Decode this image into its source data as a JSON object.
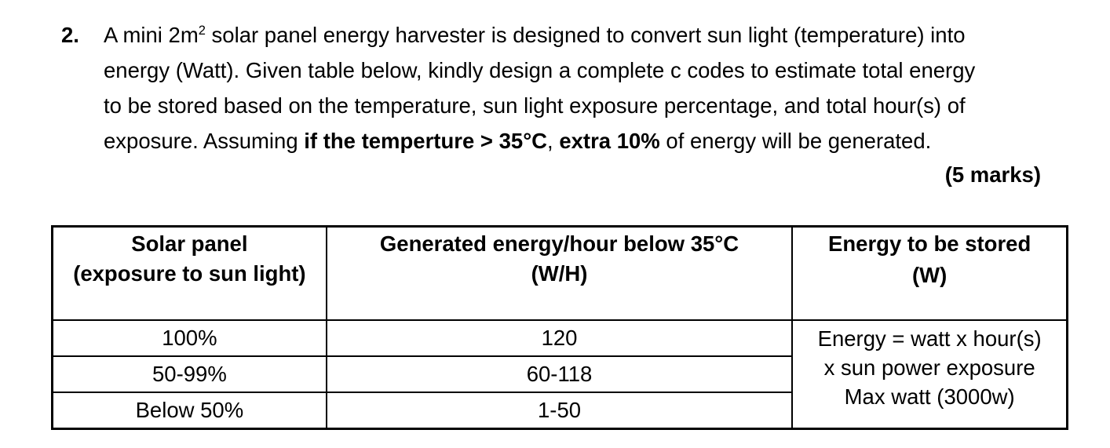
{
  "question": {
    "number": "2.",
    "lines": [
      {
        "pre": "A mini 2m",
        "sup": "2",
        "post": " solar panel energy harvester is designed to convert sun light (temperature) into"
      },
      {
        "text": "energy (Watt). Given table below, kindly design a complete c codes to estimate total energy"
      },
      {
        "text": "to be stored based on the temperature, sun light exposure percentage, and total hour(s) of"
      },
      {
        "pre": "exposure. Assuming ",
        "bold1": "if the temperture > 35°C",
        "mid": ", ",
        "bold2": "extra 10%",
        "post": " of energy will be generated."
      }
    ],
    "marks": "(5 marks)"
  },
  "table": {
    "headers": [
      [
        "Solar panel",
        "(exposure to sun light)"
      ],
      [
        "Generated energy/hour below 35°C",
        "(W/H)"
      ],
      [
        "Energy to be stored",
        "(W)"
      ]
    ],
    "rows": [
      {
        "exposure": "100%",
        "energy_per_hour": "120"
      },
      {
        "exposure": "50-99%",
        "energy_per_hour": "60-118"
      },
      {
        "exposure": "Below 50%",
        "energy_per_hour": "1-50"
      }
    ],
    "note_lines": [
      "Energy = watt x hour(s)",
      "x sun power exposure",
      "Max watt (3000w)"
    ]
  }
}
